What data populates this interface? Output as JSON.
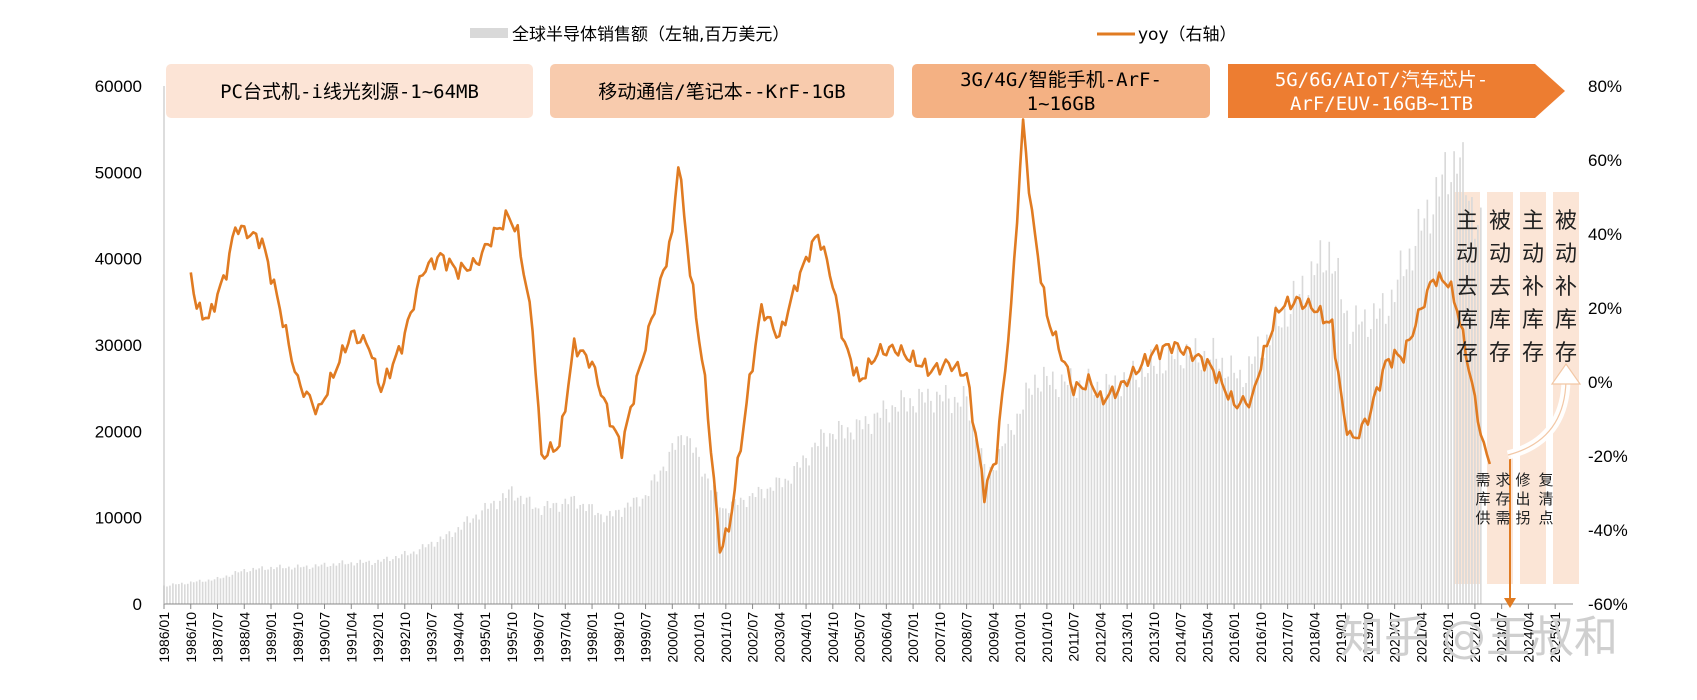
{
  "legend": {
    "bar_label": "全球半导体销售额（左轴,百万美元）",
    "line_label": "yoy（右轴）"
  },
  "eras": [
    {
      "line1": "PC台式机-i线光刻源-1~64MB",
      "line2": "",
      "color": "#fce4d6",
      "text_color": "#000000"
    },
    {
      "line1": "移动通信/笔记本--KrF-1GB",
      "line2": "",
      "color": "#f8cbad",
      "text_color": "#000000"
    },
    {
      "line1": "3G/4G/智能手机-ArF-",
      "line2": "1~16GB",
      "color": "#f4b183",
      "text_color": "#000000"
    },
    {
      "line1": "5G/6G/AIoT/汽车芯片-",
      "line2": "ArF/EUV-16GB~1TB",
      "color": "#ed7d31",
      "text_color": "#ffffff"
    }
  ],
  "phases": [
    "主动去库存",
    "被动去库存",
    "主动补库存",
    "被动补库存"
  ],
  "cycle_note_columns": [
    "需库供",
    "求存需",
    "修出拐",
    "复清点"
  ],
  "watermark": "知乎 @王叔和",
  "colors": {
    "bar": "#d9d9d9",
    "line": "#e07b22",
    "phase_bg": "#fbe5d6",
    "arrow": "#e07b22"
  },
  "chart_data": {
    "type": "bar+line",
    "x_tick_labels": [
      "1986/01",
      "1986/10",
      "1987/07",
      "1988/04",
      "1989/01",
      "1989/10",
      "1990/07",
      "1991/04",
      "1992/01",
      "1992/10",
      "1993/07",
      "1994/04",
      "1995/01",
      "1995/10",
      "1996/07",
      "1997/04",
      "1998/01",
      "1998/10",
      "1999/07",
      "2000/04",
      "2001/01",
      "2001/10",
      "2002/07",
      "2003/04",
      "2004/01",
      "2004/10",
      "2005/07",
      "2006/04",
      "2007/01",
      "2007/10",
      "2008/07",
      "2009/04",
      "2010/01",
      "2010/10",
      "2011/07",
      "2012/04",
      "2013/01",
      "2013/10",
      "2014/07",
      "2015/04",
      "2016/01",
      "2016/10",
      "2017/07",
      "2018/04",
      "2019/01",
      "2019/10",
      "2020/07",
      "2021/04",
      "2022/01",
      "2022/10",
      "2023/07",
      "2024/04",
      "2025/01"
    ],
    "left_axis": {
      "min": 0,
      "max": 60000,
      "ticks": [
        0,
        10000,
        20000,
        30000,
        40000,
        50000,
        60000
      ]
    },
    "right_axis": {
      "min": -60,
      "max": 80,
      "ticks": [
        "-60%",
        "-40%",
        "-20%",
        "0%",
        "20%",
        "40%",
        "60%",
        "80%"
      ]
    },
    "series": [
      {
        "name": "全球半导体销售额（左轴,百万美元）",
        "kind": "bar",
        "axis": "left",
        "anchors": [
          [
            "1986/01",
            2100
          ],
          [
            "1987/07",
            2900
          ],
          [
            "1988/04",
            3900
          ],
          [
            "1989/01",
            4200
          ],
          [
            "1990/01",
            4300
          ],
          [
            "1991/01",
            4700
          ],
          [
            "1992/01",
            4900
          ],
          [
            "1993/01",
            6000
          ],
          [
            "1994/01",
            8000
          ],
          [
            "1995/01",
            11000
          ],
          [
            "1995/10",
            13000
          ],
          [
            "1996/07",
            11000
          ],
          [
            "1997/07",
            12000
          ],
          [
            "1998/06",
            10000
          ],
          [
            "1999/07",
            12500
          ],
          [
            "2000/08",
            20000
          ],
          [
            "2001/09",
            11000
          ],
          [
            "2002/07",
            12500
          ],
          [
            "2003/07",
            14500
          ],
          [
            "2004/07",
            19500
          ],
          [
            "2005/07",
            20500
          ],
          [
            "2006/07",
            23000
          ],
          [
            "2007/07",
            24000
          ],
          [
            "2008/07",
            23500
          ],
          [
            "2009/02",
            14500
          ],
          [
            "2010/06",
            26000
          ],
          [
            "2011/07",
            25500
          ],
          [
            "2012/07",
            25000
          ],
          [
            "2013/07",
            27000
          ],
          [
            "2014/07",
            29000
          ],
          [
            "2015/07",
            28500
          ],
          [
            "2016/03",
            26000
          ],
          [
            "2017/07",
            34000
          ],
          [
            "2018/09",
            41000
          ],
          [
            "2019/04",
            32000
          ],
          [
            "2020/04",
            34000
          ],
          [
            "2021/07",
            46000
          ],
          [
            "2022/04",
            52000
          ],
          [
            "2022/12",
            43000
          ]
        ]
      },
      {
        "name": "yoy（右轴）",
        "kind": "line",
        "axis": "right",
        "anchors": [
          [
            "1986/10",
            30
          ],
          [
            "1986/12",
            20
          ],
          [
            "1987/04",
            17
          ],
          [
            "1987/10",
            30
          ],
          [
            "1988/01",
            42
          ],
          [
            "1988/06",
            40
          ],
          [
            "1988/10",
            38
          ],
          [
            "1989/04",
            20
          ],
          [
            "1989/10",
            0
          ],
          [
            "1990/05",
            -8
          ],
          [
            "1990/11",
            4
          ],
          [
            "1991/04",
            13
          ],
          [
            "1991/10",
            10
          ],
          [
            "1992/02",
            -2
          ],
          [
            "1992/09",
            10
          ],
          [
            "1993/04",
            30
          ],
          [
            "1993/10",
            34
          ],
          [
            "1994/04",
            30
          ],
          [
            "1994/10",
            32
          ],
          [
            "1995/04",
            40
          ],
          [
            "1995/09",
            45
          ],
          [
            "1995/12",
            40
          ],
          [
            "1996/05",
            15
          ],
          [
            "1996/08",
            -20
          ],
          [
            "1997/02",
            -17
          ],
          [
            "1997/07",
            10
          ],
          [
            "1998/01",
            5
          ],
          [
            "1998/07",
            -10
          ],
          [
            "1998/11",
            -18
          ],
          [
            "1999/04",
            0
          ],
          [
            "1999/10",
            20
          ],
          [
            "2000/04",
            40
          ],
          [
            "2000/06",
            60
          ],
          [
            "2000/10",
            30
          ],
          [
            "2001/03",
            0
          ],
          [
            "2001/08",
            -45
          ],
          [
            "2001/11",
            -40
          ],
          [
            "2002/06",
            0
          ],
          [
            "2002/10",
            20
          ],
          [
            "2003/04",
            12
          ],
          [
            "2003/10",
            27
          ],
          [
            "2004/02",
            35
          ],
          [
            "2004/05",
            40
          ],
          [
            "2004/09",
            30
          ],
          [
            "2005/02",
            10
          ],
          [
            "2005/07",
            0
          ],
          [
            "2006/01",
            8
          ],
          [
            "2006/07",
            9
          ],
          [
            "2007/01",
            6
          ],
          [
            "2007/07",
            3
          ],
          [
            "2008/01",
            5
          ],
          [
            "2008/07",
            2
          ],
          [
            "2009/01",
            -30
          ],
          [
            "2009/05",
            -20
          ],
          [
            "2009/10",
            20
          ],
          [
            "2010/02",
            70
          ],
          [
            "2010/05",
            45
          ],
          [
            "2010/10",
            18
          ],
          [
            "2011/04",
            5
          ],
          [
            "2011/07",
            -2
          ],
          [
            "2012/01",
            0
          ],
          [
            "2012/04",
            -5
          ],
          [
            "2012/10",
            -2
          ],
          [
            "2013/04",
            3
          ],
          [
            "2013/10",
            8
          ],
          [
            "2014/04",
            10
          ],
          [
            "2014/10",
            8
          ],
          [
            "2015/04",
            5
          ],
          [
            "2015/07",
            2
          ],
          [
            "2016/01",
            -6
          ],
          [
            "2016/07",
            -5
          ],
          [
            "2016/10",
            5
          ],
          [
            "2017/04",
            20
          ],
          [
            "2017/10",
            22
          ],
          [
            "2018/04",
            20
          ],
          [
            "2018/10",
            15
          ],
          [
            "2019/02",
            -10
          ],
          [
            "2019/05",
            -16
          ],
          [
            "2019/10",
            -10
          ],
          [
            "2020/04",
            5
          ],
          [
            "2020/07",
            7
          ],
          [
            "2020/10",
            7
          ],
          [
            "2021/04",
            20
          ],
          [
            "2021/08",
            28
          ],
          [
            "2022/01",
            27
          ],
          [
            "2022/04",
            20
          ],
          [
            "2022/07",
            8
          ],
          [
            "2022/10",
            -5
          ],
          [
            "2023/01",
            -18
          ],
          [
            "2023/03",
            -21
          ]
        ]
      }
    ],
    "legend_position": "top",
    "grid": false
  }
}
